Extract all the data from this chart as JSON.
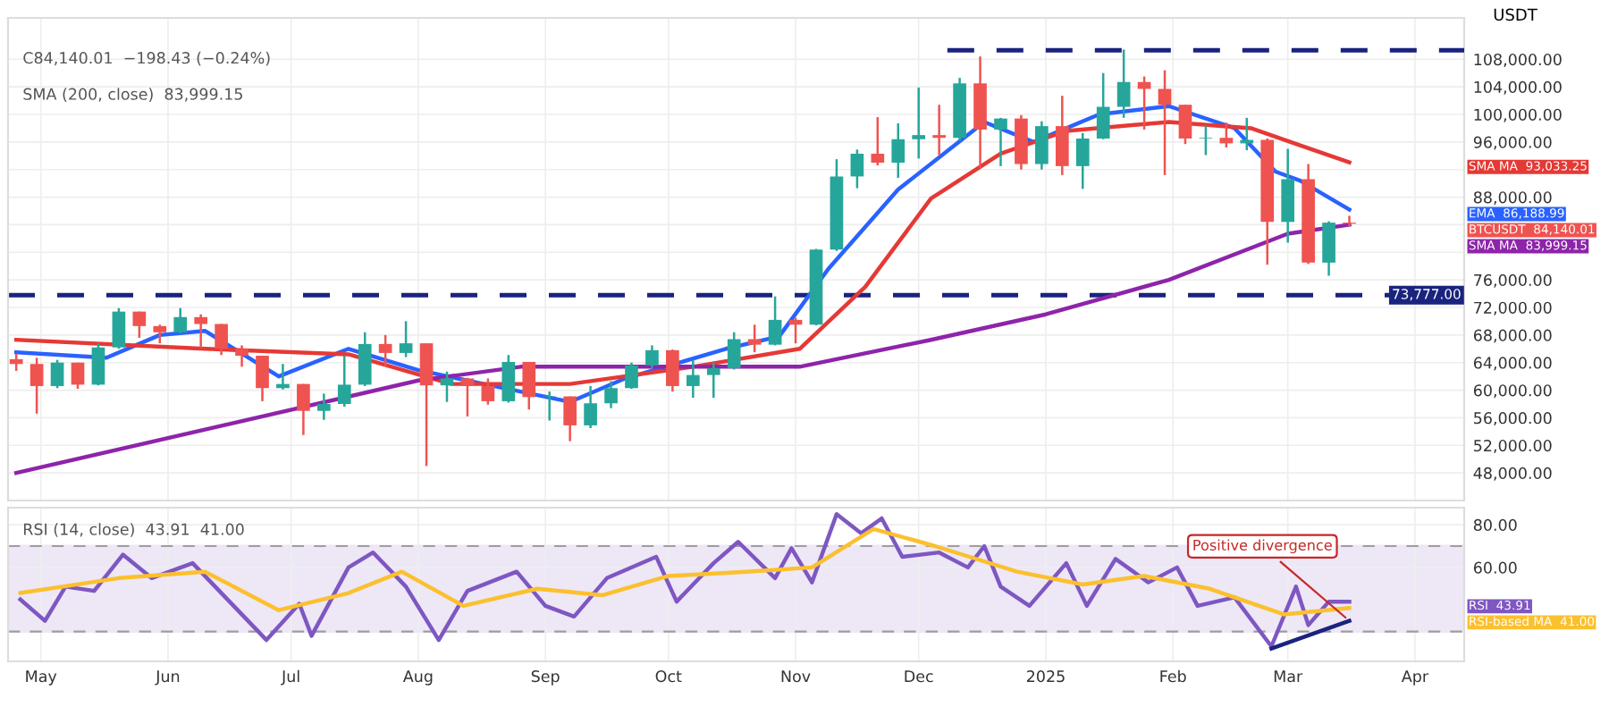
{
  "chart_data": [
    {
      "type": "candlestick",
      "ylabel": "USDT",
      "series": [
        {
          "name": "BTCUSDT",
          "x": [
            "2024-04-25",
            "2024-04-30",
            "2024-05-05",
            "2024-05-10",
            "2024-05-15",
            "2024-05-20",
            "2024-05-25",
            "2024-05-30",
            "2024-06-04",
            "2024-06-09",
            "2024-06-14",
            "2024-06-19",
            "2024-06-24",
            "2024-06-29",
            "2024-07-04",
            "2024-07-09",
            "2024-07-14",
            "2024-07-19",
            "2024-07-24",
            "2024-07-29",
            "2024-08-03",
            "2024-08-08",
            "2024-08-13",
            "2024-08-18",
            "2024-08-23",
            "2024-08-28",
            "2024-09-02",
            "2024-09-07",
            "2024-09-12",
            "2024-09-17",
            "2024-09-22",
            "2024-09-27",
            "2024-10-02",
            "2024-10-07",
            "2024-10-12",
            "2024-10-17",
            "2024-10-22",
            "2024-10-27",
            "2024-11-01",
            "2024-11-06",
            "2024-11-11",
            "2024-11-16",
            "2024-11-21",
            "2024-11-26",
            "2024-12-01",
            "2024-12-06",
            "2024-12-11",
            "2024-12-16",
            "2024-12-21",
            "2024-12-26",
            "2024-12-31",
            "2025-01-05",
            "2025-01-10",
            "2025-01-15",
            "2025-01-20",
            "2025-01-25",
            "2025-01-30",
            "2025-02-04",
            "2025-02-09",
            "2025-02-14",
            "2025-02-19",
            "2025-02-24",
            "2025-03-01",
            "2025-03-06",
            "2025-03-11",
            "2025-03-16"
          ],
          "ohlc": [
            [
              64500,
              65300,
              62800,
              63800
            ],
            [
              63800,
              64700,
              56600,
              60600
            ],
            [
              60600,
              64400,
              60300,
              64000
            ],
            [
              64000,
              64000,
              60200,
              60800
            ],
            [
              60800,
              66800,
              60700,
              66200
            ],
            [
              66200,
              71900,
              66000,
              71400
            ],
            [
              71400,
              71400,
              67600,
              69300
            ],
            [
              69300,
              69500,
              66800,
              68400
            ],
            [
              68400,
              71900,
              68200,
              70600
            ],
            [
              70600,
              71000,
              66100,
              69600
            ],
            [
              69600,
              69600,
              65100,
              66000
            ],
            [
              66000,
              66500,
              63400,
              65000
            ],
            [
              65000,
              65000,
              58400,
              60300
            ],
            [
              60300,
              63800,
              60100,
              60900
            ],
            [
              60900,
              60900,
              53500,
              57000
            ],
            [
              57000,
              59500,
              55700,
              58000
            ],
            [
              58000,
              65000,
              57600,
              60800
            ],
            [
              60800,
              68400,
              60600,
              66700
            ],
            [
              66700,
              68000,
              63500,
              65400
            ],
            [
              65400,
              70000,
              64800,
              66800
            ],
            [
              66800,
              66800,
              49000,
              60700
            ],
            [
              60700,
              62700,
              58300,
              61700
            ],
            [
              61700,
              61800,
              56200,
              60600
            ],
            [
              60600,
              61700,
              57900,
              58400
            ],
            [
              58400,
              65100,
              58200,
              64100
            ],
            [
              64100,
              64100,
              57200,
              59000
            ],
            [
              59000,
              59800,
              55600,
              59100
            ],
            [
              59100,
              59100,
              52600,
              54900
            ],
            [
              54900,
              60600,
              54500,
              58100
            ],
            [
              58100,
              61300,
              57400,
              60300
            ],
            [
              60300,
              64000,
              60200,
              63600
            ],
            [
              63600,
              66500,
              63200,
              65800
            ],
            [
              65800,
              65900,
              59800,
              60600
            ],
            [
              60600,
              64400,
              58900,
              62200
            ],
            [
              62200,
              64000,
              58900,
              63200
            ],
            [
              63200,
              68400,
              63000,
              67400
            ],
            [
              67400,
              69500,
              65500,
              66600
            ],
            [
              66600,
              73600,
              66500,
              70200
            ],
            [
              70200,
              70500,
              66800,
              69500
            ],
            [
              69500,
              80500,
              69400,
              80400
            ],
            [
              80400,
              93500,
              80200,
              91000
            ],
            [
              91000,
              94900,
              89300,
              94300
            ],
            [
              94300,
              99600,
              92600,
              93000
            ],
            [
              93000,
              98700,
              90800,
              96400
            ],
            [
              96400,
              103900,
              93600,
              97000
            ],
            [
              97000,
              101400,
              94100,
              96600
            ],
            [
              96600,
              105300,
              96200,
              104500
            ],
            [
              104500,
              108400,
              92200,
              97800
            ],
            [
              97800,
              99500,
              92500,
              99400
            ],
            [
              99400,
              99900,
              92000,
              92800
            ],
            [
              92800,
              99000,
              92000,
              98300
            ],
            [
              98300,
              102700,
              91200,
              92500
            ],
            [
              92500,
              97300,
              89200,
              96500
            ],
            [
              96500,
              106000,
              96400,
              101100
            ],
            [
              101100,
              109400,
              99500,
              104700
            ],
            [
              104700,
              105500,
              97800,
              103700
            ],
            [
              103700,
              106400,
              91200,
              101400
            ],
            [
              101400,
              101400,
              95700,
              96500
            ],
            [
              96500,
              98400,
              94100,
              96600
            ],
            [
              96600,
              98800,
              95200,
              95800
            ],
            [
              95800,
              99500,
              94800,
              96300
            ],
            [
              96300,
              96500,
              78200,
              84400
            ],
            [
              84400,
              95000,
              81400,
              90600
            ],
            [
              90600,
              92800,
              78300,
              78500
            ],
            [
              78500,
              84500,
              76600,
              84300
            ],
            [
              84300,
              85300,
              83800,
              84140
            ]
          ],
          "colors": [
            "#ef5350",
            "#ef5350",
            "#26a69a",
            "#ef5350",
            "#26a69a",
            "#26a69a",
            "#ef5350",
            "#ef5350",
            "#26a69a",
            "#ef5350",
            "#ef5350",
            "#ef5350",
            "#ef5350",
            "#26a69a",
            "#ef5350",
            "#26a69a",
            "#26a69a",
            "#26a69a",
            "#ef5350",
            "#26a69a",
            "#ef5350",
            "#26a69a",
            "#ef5350",
            "#ef5350",
            "#26a69a",
            "#ef5350",
            "#26a69a",
            "#ef5350",
            "#26a69a",
            "#26a69a",
            "#26a69a",
            "#26a69a",
            "#ef5350",
            "#26a69a",
            "#26a69a",
            "#26a69a",
            "#ef5350",
            "#26a69a",
            "#ef5350",
            "#26a69a",
            "#26a69a",
            "#26a69a",
            "#ef5350",
            "#26a69a",
            "#26a69a",
            "#ef5350",
            "#26a69a",
            "#ef5350",
            "#26a69a",
            "#ef5350",
            "#26a69a",
            "#ef5350",
            "#26a69a",
            "#26a69a",
            "#26a69a",
            "#ef5350",
            "#ef5350",
            "#ef5350",
            "#26a69a",
            "#ef5350",
            "#26a69a",
            "#ef5350",
            "#26a69a",
            "#ef5350",
            "#26a69a",
            "#ef5350"
          ],
          "value_labels": [
            null,
            null,
            null,
            null,
            null,
            null,
            null,
            null,
            null,
            null,
            null,
            null,
            null,
            null,
            null,
            null,
            null,
            null,
            null,
            null,
            null,
            null,
            null,
            null,
            null,
            null,
            null,
            null,
            null,
            null,
            null,
            null,
            null,
            null,
            null,
            null,
            null,
            null,
            null,
            null,
            null,
            null,
            null,
            null,
            null,
            null,
            null,
            null,
            null,
            null,
            null,
            null,
            null,
            null,
            null,
            null,
            null,
            null,
            null,
            null,
            null,
            null,
            null,
            null,
            null,
            "84,140.01"
          ]
        },
        {
          "type": "line",
          "name": "EMA",
          "value_labels": [
            null,
            null,
            null,
            null,
            null,
            null,
            null,
            null,
            null,
            null,
            null,
            null,
            null,
            null,
            null,
            null,
            null,
            null,
            null,
            null,
            null,
            "86,188.99"
          ],
          "color": "#2962ff",
          "x": [
            "2024-04-25",
            "2024-05-17",
            "2024-05-30",
            "2024-06-10",
            "2024-06-28",
            "2024-07-15",
            "2024-08-01",
            "2024-08-17",
            "2024-09-07",
            "2024-09-20",
            "2024-10-15",
            "2024-10-28",
            "2024-11-09",
            "2024-11-26",
            "2024-12-17",
            "2024-12-29",
            "2025-01-14",
            "2025-01-31",
            "2025-02-16",
            "2025-02-26",
            "2025-03-04",
            "2025-03-16"
          ],
          "values": [
            65500,
            64700,
            68000,
            68600,
            62000,
            66000,
            62900,
            60900,
            58300,
            61600,
            66000,
            67800,
            77600,
            89100,
            98900,
            96000,
            100000,
            101200,
            98000,
            91700,
            90400,
            86188.99
          ]
        },
        {
          "type": "line",
          "name": "SMA MA",
          "value_labels": [
            null,
            null,
            null,
            null,
            null,
            null,
            null,
            null,
            null,
            null,
            null,
            null,
            null,
            null,
            "93,033.25"
          ],
          "color": "#e53935",
          "x": [
            "2024-04-25",
            "2024-06-10",
            "2024-07-15",
            "2024-08-09",
            "2024-09-07",
            "2024-10-07",
            "2024-11-02",
            "2024-11-18",
            "2024-12-04",
            "2024-12-21",
            "2025-01-06",
            "2025-01-31",
            "2025-02-20",
            "2025-03-04",
            "2025-03-16"
          ],
          "values": [
            67300,
            66000,
            65200,
            60900,
            60900,
            63400,
            66000,
            75000,
            87800,
            94300,
            97600,
            98900,
            98000,
            95500,
            93033.25
          ]
        },
        {
          "type": "line",
          "name": "SMA MA",
          "value_labels": [
            null,
            null,
            null,
            null,
            null,
            null,
            null,
            null,
            null,
            "83,999.15"
          ],
          "color": "#8e24aa",
          "x": [
            "2024-04-25",
            "2024-08-01",
            "2024-08-26",
            "2024-10-07",
            "2024-11-02",
            "2024-12-04",
            "2025-01-01",
            "2025-01-31",
            "2025-03-01",
            "2025-03-16"
          ],
          "values": [
            48000,
            61400,
            63400,
            63400,
            63400,
            67300,
            71000,
            76000,
            82700,
            83999.15
          ]
        },
        {
          "type": "line",
          "color": "#1a237e",
          "line_style": "dashed",
          "x": [
            "2024-12-08",
            "2025-04-13"
          ],
          "values": [
            109300,
            109300
          ]
        }
      ],
      "ref_lines": [
        {
          "axis": "y",
          "value": 73777,
          "label": "73,777.00",
          "color": "#1a237e",
          "line_style": "dashed"
        }
      ],
      "annotations": [
        "C84,140.01  −198.43 (−0.24%)",
        "SMA (200, close)  83,999.15"
      ],
      "xlim": [
        "2024-04-23",
        "2025-04-13"
      ],
      "xticks": [
        {
          "value": "2024-05-01",
          "label": null
        },
        {
          "value": "2024-06-01",
          "label": null
        },
        {
          "value": "2024-07-01",
          "label": null
        },
        {
          "value": "2024-08-01",
          "label": null
        },
        {
          "value": "2024-09-01",
          "label": null
        },
        {
          "value": "2024-10-01",
          "label": null
        },
        {
          "value": "2024-11-01",
          "label": null
        },
        {
          "value": "2024-12-01",
          "label": null
        },
        {
          "value": "2025-01-01",
          "label": null
        },
        {
          "value": "2025-02-01",
          "label": null
        },
        {
          "value": "2025-03-01",
          "label": null
        },
        {
          "value": "2025-04-01",
          "label": null
        }
      ],
      "ylim": [
        44000,
        114000
      ],
      "yticks": [
        {
          "value": 48000,
          "label": "48,000.00"
        },
        {
          "value": 52000,
          "label": "52,000.00"
        },
        {
          "value": 56000,
          "label": "56,000.00"
        },
        {
          "value": 60000,
          "label": "60,000.00"
        },
        {
          "value": 64000,
          "label": "64,000.00"
        },
        {
          "value": 68000,
          "label": "68,000.00"
        },
        {
          "value": 72000,
          "label": "72,000.00"
        },
        {
          "value": 76000,
          "label": "76,000.00"
        },
        {
          "value": 80000,
          "label": null
        },
        {
          "value": 84000,
          "label": null
        },
        {
          "value": 88000,
          "label": "88,000.00"
        },
        {
          "value": 92000,
          "label": null
        },
        {
          "value": 96000,
          "label": "96,000.00"
        },
        {
          "value": 100000,
          "label": "100,000.00"
        },
        {
          "value": 104000,
          "label": "104,000.00"
        },
        {
          "value": 108000,
          "label": "108,000.00"
        }
      ],
      "tick_labels": "y",
      "grid": true
    },
    {
      "type": "line",
      "series": [
        {
          "name": "RSI",
          "value_labels": [
            null,
            null,
            null,
            null,
            null,
            null,
            null,
            null,
            null,
            null,
            null,
            null,
            null,
            null,
            null,
            null,
            null,
            null,
            null,
            null,
            null,
            null,
            null,
            null,
            null,
            null,
            null,
            null,
            null,
            null,
            null,
            null,
            null,
            null,
            null,
            null,
            null,
            null,
            null,
            null,
            null,
            null,
            null,
            null,
            null,
            null,
            null,
            "43.91"
          ],
          "color": "#7e57c2",
          "x": [
            "2024-04-26",
            "2024-05-02",
            "2024-05-07",
            "2024-05-14",
            "2024-05-21",
            "2024-05-28",
            "2024-06-07",
            "2024-06-16",
            "2024-06-25",
            "2024-07-03",
            "2024-07-06",
            "2024-07-15",
            "2024-07-21",
            "2024-07-29",
            "2024-08-06",
            "2024-08-13",
            "2024-08-25",
            "2024-09-01",
            "2024-09-08",
            "2024-09-16",
            "2024-09-28",
            "2024-10-03",
            "2024-10-12",
            "2024-10-18",
            "2024-10-27",
            "2024-10-31",
            "2024-11-05",
            "2024-11-11",
            "2024-11-17",
            "2024-11-22",
            "2024-11-27",
            "2024-12-06",
            "2024-12-13",
            "2024-12-17",
            "2024-12-21",
            "2024-12-28",
            "2025-01-06",
            "2025-01-11",
            "2025-01-18",
            "2025-01-26",
            "2025-02-02",
            "2025-02-07",
            "2025-02-16",
            "2025-02-25",
            "2025-03-03",
            "2025-03-06",
            "2025-03-11",
            "2025-03-16"
          ],
          "values": [
            45,
            35,
            51,
            49,
            66,
            55,
            62,
            44,
            26,
            43,
            28,
            60,
            67,
            51,
            26,
            49,
            58,
            42,
            37,
            55,
            65,
            44,
            62,
            72,
            55,
            69,
            53,
            85,
            76,
            83,
            65,
            67,
            60,
            70,
            51,
            42,
            62,
            42,
            64,
            53,
            60,
            42,
            46,
            23,
            51,
            33,
            44,
            43.91
          ]
        },
        {
          "name": "RSI-based MA",
          "value_labels": [
            null,
            null,
            null,
            null,
            null,
            null,
            null,
            null,
            null,
            null,
            null,
            null,
            null,
            null,
            null,
            null,
            null,
            null,
            null,
            "41.00"
          ],
          "color": "#fbc02d",
          "x": [
            "2024-04-26",
            "2024-05-20",
            "2024-06-10",
            "2024-06-28",
            "2024-07-15",
            "2024-07-28",
            "2024-08-12",
            "2024-08-30",
            "2024-09-15",
            "2024-10-01",
            "2024-10-20",
            "2024-11-05",
            "2024-11-20",
            "2024-12-05",
            "2024-12-25",
            "2025-01-10",
            "2025-01-25",
            "2025-02-10",
            "2025-02-28",
            "2025-03-16"
          ],
          "values": [
            48,
            55,
            58,
            40,
            48,
            58,
            42,
            50,
            47,
            56,
            58,
            60,
            78,
            70,
            58,
            52,
            56,
            50,
            38,
            41.0
          ]
        },
        {
          "color": "#1a237e",
          "x": [
            "2025-02-25",
            "2025-03-16"
          ],
          "values": [
            22,
            35
          ]
        }
      ],
      "bands": [
        {
          "axis": "y",
          "from": 30,
          "to": 70,
          "color": "#ede7f6"
        }
      ],
      "ref_lines": [
        {
          "axis": "y",
          "value": 30,
          "color": "#9e9e9e",
          "line_style": "dashed"
        },
        {
          "axis": "y",
          "value": 70,
          "color": "#9e9e9e",
          "line_style": "dashed"
        }
      ],
      "annotations": [
        "RSI (14, close)  43.91  41.00",
        {
          "text": "Positive divergence",
          "x": "2025-03-16",
          "y": 35
        }
      ],
      "xlim": [
        "2024-04-23",
        "2025-04-13"
      ],
      "xticks": [
        {
          "value": "2024-05-01",
          "label": "May"
        },
        {
          "value": "2024-06-01",
          "label": "Jun"
        },
        {
          "value": "2024-07-01",
          "label": "Jul"
        },
        {
          "value": "2024-08-01",
          "label": "Aug"
        },
        {
          "value": "2024-09-01",
          "label": "Sep"
        },
        {
          "value": "2024-10-01",
          "label": "Oct"
        },
        {
          "value": "2024-11-01",
          "label": "Nov"
        },
        {
          "value": "2024-12-01",
          "label": "Dec"
        },
        {
          "value": "2025-01-01",
          "label": "2025"
        },
        {
          "value": "2025-02-01",
          "label": "Feb"
        },
        {
          "value": "2025-03-01",
          "label": "Mar"
        },
        {
          "value": "2025-04-01",
          "label": "Apr"
        }
      ],
      "ylim": [
        16,
        88
      ],
      "yticks": [
        {
          "value": 60,
          "label": "60.00"
        },
        {
          "value": 80,
          "label": "80.00"
        }
      ],
      "grid": true
    }
  ]
}
